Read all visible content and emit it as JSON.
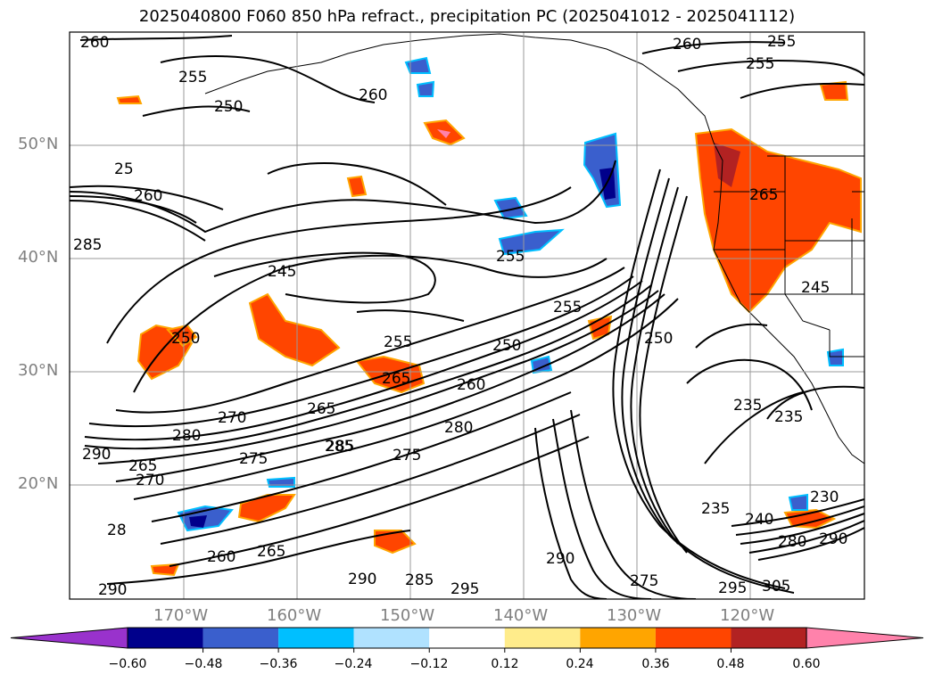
{
  "title": "2025040800 F060 850 hPa refract., precipitation PC (2025041012 - 2025041112)",
  "lat_labels": [
    "50°N",
    "40°N",
    "30°N",
    "20°N"
  ],
  "lon_labels": [
    "170°W",
    "160°W",
    "150°W",
    "140°W",
    "130°W",
    "120°W"
  ],
  "contour_labels": [
    "260",
    "255",
    "250",
    "25",
    "260",
    "285",
    "255",
    "260",
    "245",
    "250",
    "255",
    "265",
    "250",
    "255",
    "250",
    "260",
    "265",
    "270",
    "280",
    "290",
    "275",
    "285",
    "275",
    "280",
    "265",
    "270",
    "260",
    "265",
    "255",
    "260",
    "255",
    "245",
    "235",
    "235",
    "235",
    "230",
    "240",
    "280",
    "290",
    "285",
    "295",
    "290",
    "290",
    "285",
    "275",
    "295",
    "305",
    "290",
    "28",
    "265"
  ],
  "colorbar": {
    "ticks": [
      "−0.60",
      "−0.48",
      "−0.36",
      "−0.24",
      "−0.12",
      "0.12",
      "0.24",
      "0.36",
      "0.48",
      "0.60"
    ],
    "colors": [
      "#9932cc",
      "#00008b",
      "#3a5fcd",
      "#00bfff",
      "#b0e2ff",
      "#ffffff",
      "#ffec8b",
      "#ffa500",
      "#ff4500",
      "#b22222",
      "#ff82ab"
    ]
  }
}
